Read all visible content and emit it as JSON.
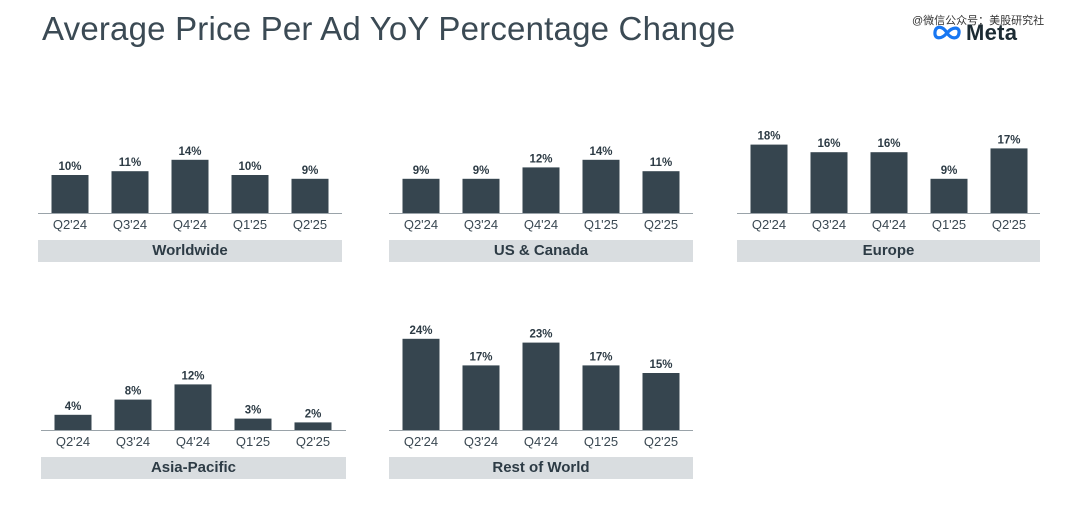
{
  "title": "Average Price Per Ad YoY Percentage Change",
  "watermark": "@微信公众号：美股研究社",
  "logo_text": "Meta",
  "colors": {
    "bar": "#36454f",
    "axis": "#9aa3a9",
    "label_bg": "#d9dde0",
    "text": "#2d3b45"
  },
  "chart_data": [
    {
      "type": "bar",
      "title": "Worldwide",
      "categories": [
        "Q2'24",
        "Q3'24",
        "Q4'24",
        "Q1'25",
        "Q2'25"
      ],
      "values": [
        10,
        11,
        14,
        10,
        9
      ],
      "data_labels": [
        "10%",
        "11%",
        "14%",
        "10%",
        "9%"
      ],
      "ylim": [
        0,
        24
      ]
    },
    {
      "type": "bar",
      "title": "US & Canada",
      "categories": [
        "Q2'24",
        "Q3'24",
        "Q4'24",
        "Q1'25",
        "Q2'25"
      ],
      "values": [
        9,
        9,
        12,
        14,
        11
      ],
      "data_labels": [
        "9%",
        "9%",
        "12%",
        "14%",
        "11%"
      ],
      "ylim": [
        0,
        24
      ]
    },
    {
      "type": "bar",
      "title": "Europe",
      "categories": [
        "Q2'24",
        "Q3'24",
        "Q4'24",
        "Q1'25",
        "Q2'25"
      ],
      "values": [
        18,
        16,
        16,
        9,
        17
      ],
      "data_labels": [
        "18%",
        "16%",
        "16%",
        "9%",
        "17%"
      ],
      "ylim": [
        0,
        24
      ]
    },
    {
      "type": "bar",
      "title": "Asia-Pacific",
      "categories": [
        "Q2'24",
        "Q3'24",
        "Q4'24",
        "Q1'25",
        "Q2'25"
      ],
      "values": [
        4,
        8,
        12,
        3,
        2
      ],
      "data_labels": [
        "4%",
        "8%",
        "12%",
        "3%",
        "2%"
      ],
      "ylim": [
        0,
        24
      ]
    },
    {
      "type": "bar",
      "title": "Rest of World",
      "categories": [
        "Q2'24",
        "Q3'24",
        "Q4'24",
        "Q1'25",
        "Q2'25"
      ],
      "values": [
        24,
        17,
        23,
        17,
        15
      ],
      "data_labels": [
        "24%",
        "17%",
        "23%",
        "17%",
        "15%"
      ],
      "ylim": [
        0,
        24
      ]
    }
  ]
}
